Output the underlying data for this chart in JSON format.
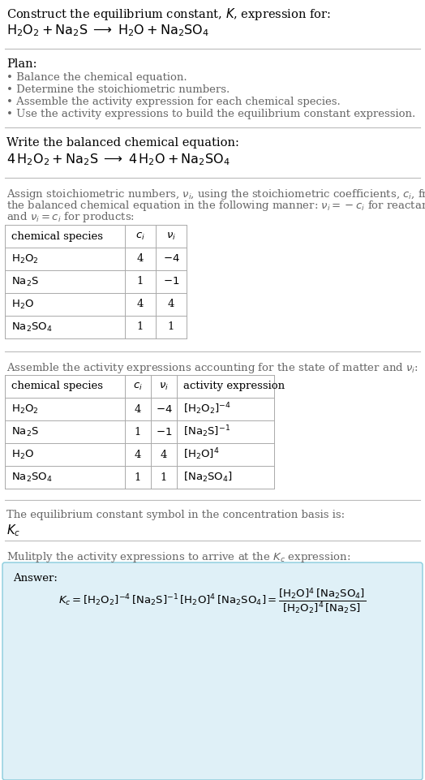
{
  "bg_color": "#ffffff",
  "text_color": "#000000",
  "gray_text": "#666666",
  "section_bg": "#dff0f7",
  "box_border": "#88ccdd",
  "title_line1": "Construct the equilibrium constant, $K$, expression for:",
  "title_line2": "$\\mathrm{H_2O_2 + Na_2S \\;\\longrightarrow\\; H_2O + Na_2SO_4}$",
  "plan_header": "Plan:",
  "plan_bullets": [
    "• Balance the chemical equation.",
    "• Determine the stoichiometric numbers.",
    "• Assemble the activity expression for each chemical species.",
    "• Use the activity expressions to build the equilibrium constant expression."
  ],
  "balanced_header": "Write the balanced chemical equation:",
  "balanced_eq": "$\\mathrm{4\\,H_2O_2 + Na_2S \\;\\longrightarrow\\; 4\\,H_2O + Na_2SO_4}$",
  "stoich_header_parts": [
    "Assign stoichiometric numbers, $\\nu_i$, using the stoichiometric coefficients, $c_i$, from",
    "the balanced chemical equation in the following manner: $\\nu_i = -c_i$ for reactants",
    "and $\\nu_i = c_i$ for products:"
  ],
  "table1_headers": [
    "chemical species",
    "$c_i$",
    "$\\nu_i$"
  ],
  "table1_rows": [
    [
      "$\\mathrm{H_2O_2}$",
      "4",
      "$-4$"
    ],
    [
      "$\\mathrm{Na_2S}$",
      "1",
      "$-1$"
    ],
    [
      "$\\mathrm{H_2O}$",
      "4",
      "4"
    ],
    [
      "$\\mathrm{Na_2SO_4}$",
      "1",
      "1"
    ]
  ],
  "activity_header": "Assemble the activity expressions accounting for the state of matter and $\\nu_i$:",
  "table2_headers": [
    "chemical species",
    "$c_i$",
    "$\\nu_i$",
    "activity expression"
  ],
  "table2_rows": [
    [
      "$\\mathrm{H_2O_2}$",
      "4",
      "$-4$",
      "$[\\mathrm{H_2O_2}]^{-4}$"
    ],
    [
      "$\\mathrm{Na_2S}$",
      "1",
      "$-1$",
      "$[\\mathrm{Na_2S}]^{-1}$"
    ],
    [
      "$\\mathrm{H_2O}$",
      "4",
      "4",
      "$[\\mathrm{H_2O}]^{4}$"
    ],
    [
      "$\\mathrm{Na_2SO_4}$",
      "1",
      "1",
      "$[\\mathrm{Na_2SO_4}]$"
    ]
  ],
  "kc_header": "The equilibrium constant symbol in the concentration basis is:",
  "kc_symbol": "$K_c$",
  "multiply_header": "Mulitply the activity expressions to arrive at the $K_c$ expression:",
  "answer_label": "Answer:",
  "kc_expr": "$K_c = [\\mathrm{H_2O_2}]^{-4}\\,[\\mathrm{Na_2S}]^{-1}\\,[\\mathrm{H_2O}]^{4}\\,[\\mathrm{Na_2SO_4}] = \\dfrac{[\\mathrm{H_2O}]^{4}\\,[\\mathrm{Na_2SO_4}]}{[\\mathrm{H_2O_2}]^{4}\\,[\\mathrm{Na_2S}]}$"
}
